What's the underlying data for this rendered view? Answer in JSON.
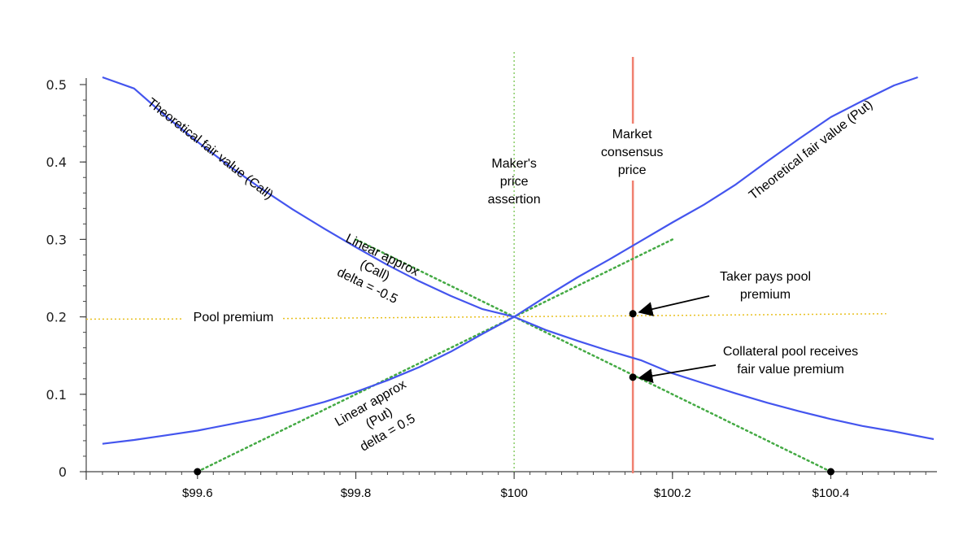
{
  "chart_data": {
    "type": "line",
    "title": "",
    "xlabel": "",
    "ylabel": "",
    "xlim": [
      99.48,
      100.53
    ],
    "ylim": [
      0,
      0.51
    ],
    "grid": false,
    "x_ticks": [
      {
        "value": 99.6,
        "label": "$99.6"
      },
      {
        "value": 99.8,
        "label": "$99.8"
      },
      {
        "value": 100.0,
        "label": "$100"
      },
      {
        "value": 100.2,
        "label": "$100.2"
      },
      {
        "value": 100.4,
        "label": "$100.4"
      }
    ],
    "y_ticks": [
      {
        "value": 0,
        "label": "0"
      },
      {
        "value": 0.1,
        "label": "0.1"
      },
      {
        "value": 0.2,
        "label": "0.2"
      },
      {
        "value": 0.3,
        "label": "0.3"
      },
      {
        "value": 0.4,
        "label": "0.4"
      },
      {
        "value": 0.5,
        "label": "0.5"
      }
    ],
    "colors": {
      "curve": "#4455ee",
      "linear": "#44aa44",
      "maker": "#88cc66",
      "market": "#f08070",
      "pool": "#e8c020",
      "point": "#000000"
    },
    "series": [
      {
        "name": "Theoretical fair value (Call)",
        "color": "#4455ee",
        "x": [
          99.48,
          99.52,
          99.56,
          99.6,
          99.64,
          99.68,
          99.72,
          99.76,
          99.8,
          99.84,
          99.88,
          99.92,
          99.96,
          100.0,
          100.04,
          100.08,
          100.12,
          100.16,
          100.2,
          100.24,
          100.28,
          100.32,
          100.36,
          100.4,
          100.44,
          100.48,
          100.53
        ],
        "y": [
          0.535,
          0.495,
          0.459,
          0.426,
          0.395,
          0.366,
          0.339,
          0.314,
          0.29,
          0.267,
          0.246,
          0.227,
          0.21,
          0.2,
          0.183,
          0.169,
          0.156,
          0.144,
          0.127,
          0.114,
          0.101,
          0.089,
          0.078,
          0.068,
          0.059,
          0.052,
          0.042
        ]
      },
      {
        "name": "Theoretical fair value (Put)",
        "color": "#4455ee",
        "x": [
          99.48,
          99.52,
          99.56,
          99.6,
          99.64,
          99.68,
          99.72,
          99.76,
          99.8,
          99.84,
          99.88,
          99.92,
          99.96,
          100.0,
          100.04,
          100.08,
          100.12,
          100.16,
          100.2,
          100.24,
          100.28,
          100.32,
          100.36,
          100.4,
          100.44,
          100.48,
          100.51
        ],
        "y": [
          0.036,
          0.041,
          0.047,
          0.053,
          0.061,
          0.069,
          0.079,
          0.09,
          0.103,
          0.118,
          0.135,
          0.155,
          0.178,
          0.2,
          0.226,
          0.251,
          0.274,
          0.298,
          0.322,
          0.345,
          0.371,
          0.401,
          0.43,
          0.458,
          0.479,
          0.499,
          0.512
        ]
      }
    ],
    "linear_approximations": [
      {
        "label_lines": [
          "Linear approx",
          "(Call)",
          "delta = -0.5"
        ],
        "x": [
          99.8,
          100.4
        ],
        "y": [
          0.3,
          0.0
        ]
      },
      {
        "label_lines": [
          "Linear approx",
          "(Put)",
          "delta = 0.5"
        ],
        "x": [
          99.6,
          100.2
        ],
        "y": [
          0.0,
          0.3
        ]
      }
    ],
    "curve_labels": [
      {
        "text": "Theoretical fair value (Call)"
      },
      {
        "text": "Theoretical fair value (Put)"
      }
    ],
    "vertical_lines": [
      {
        "x": 100.0,
        "label_lines": [
          "Maker's",
          "price",
          "assertion"
        ],
        "style": "dotted"
      },
      {
        "x": 100.15,
        "label_lines": [
          "Market",
          "consensus",
          "price"
        ],
        "style": "solid"
      }
    ],
    "pool_premium": {
      "label": "Pool premium",
      "x": [
        99.48,
        100.47
      ],
      "y": [
        0.197,
        0.204
      ]
    },
    "points": [
      {
        "x": 99.6,
        "y": 0.0
      },
      {
        "x": 100.4,
        "y": 0.0
      },
      {
        "x": 100.15,
        "y": 0.204
      },
      {
        "x": 100.15,
        "y": 0.122
      }
    ],
    "annotations": [
      {
        "label_lines": [
          "Taker pays pool",
          "premium"
        ],
        "target_x": 100.15,
        "target_y": 0.204
      },
      {
        "label_lines": [
          "Collateral pool receives",
          "fair value premium"
        ],
        "target_x": 100.15,
        "target_y": 0.122
      }
    ]
  }
}
